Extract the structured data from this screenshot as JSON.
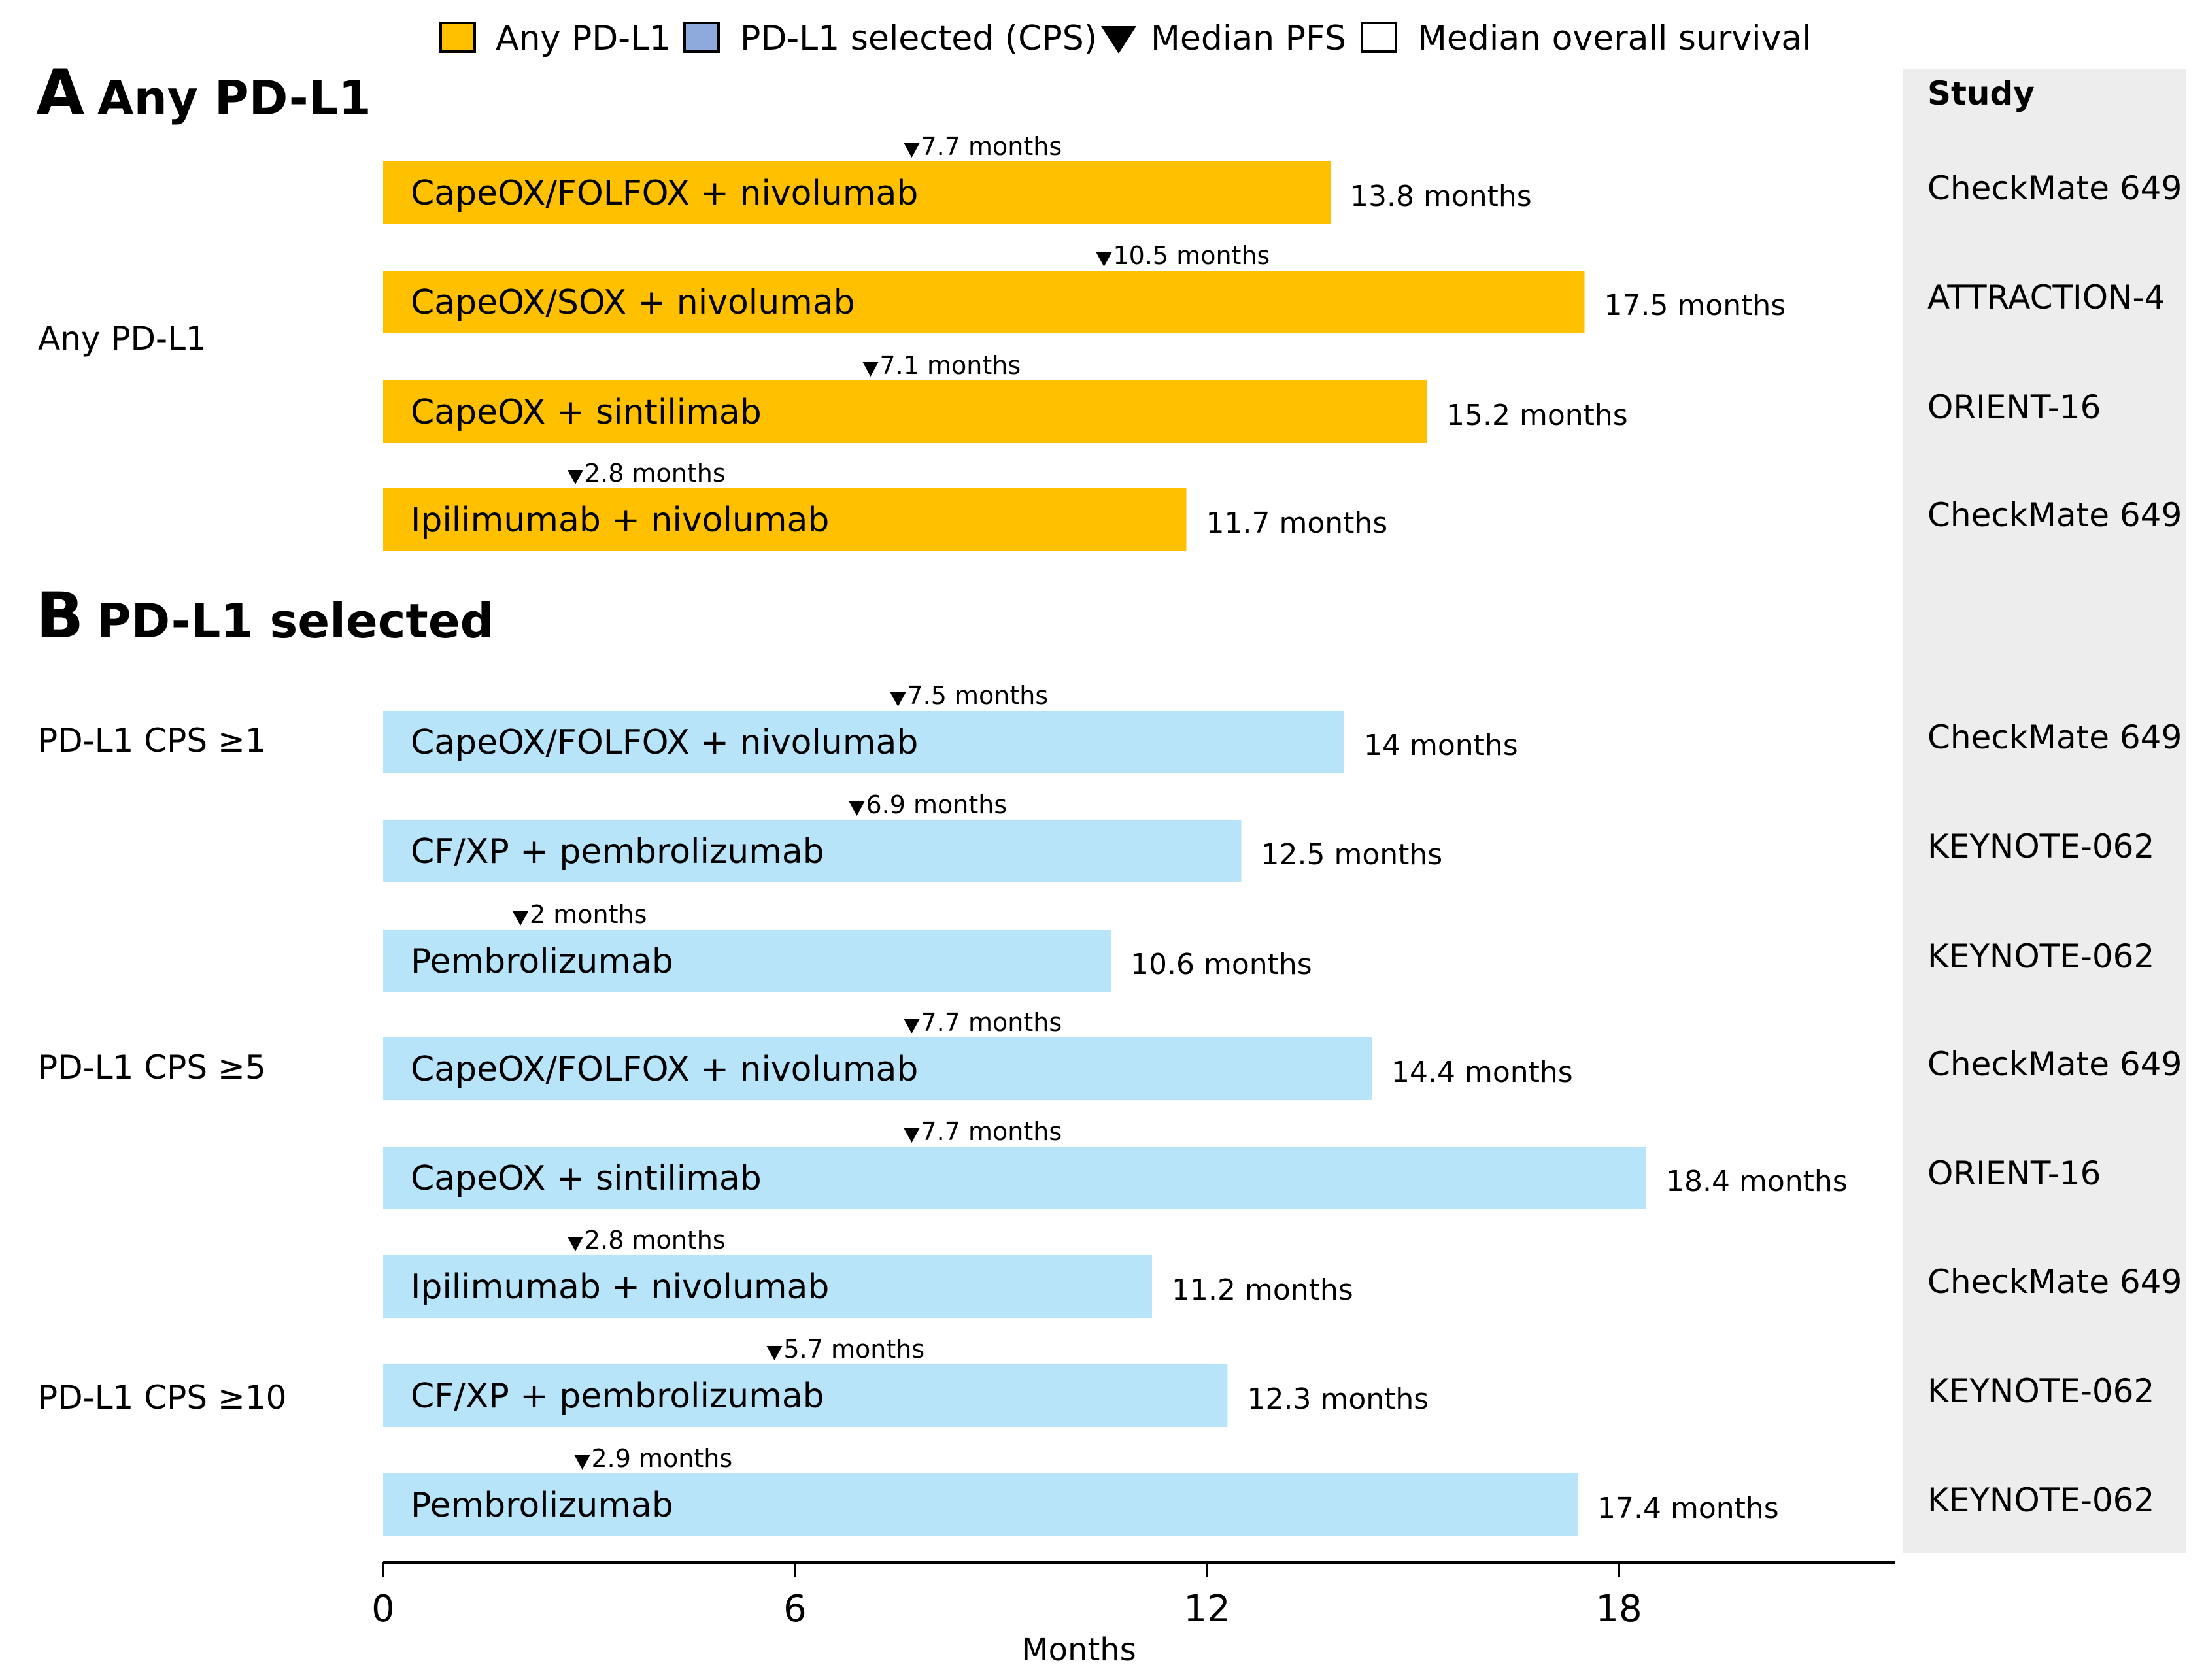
{
  "legend": {
    "any_label": "Any PD-L1",
    "selected_label": "PD-L1 selected (CPS)",
    "pfs_label": "Median PFS",
    "os_label": "Median overall survival",
    "any_color": "#FFC000",
    "selected_color": "#8EA9DB",
    "selected_bar_color": "#B8E4FA"
  },
  "panels": {
    "a_letter": "A",
    "a_title": "Any PD-L1",
    "b_letter": "B",
    "b_title": "PD-L1 selected"
  },
  "study_header": "Study",
  "chart_data": {
    "type": "bar",
    "orientation": "horizontal",
    "xlabel": "Months",
    "xlim": [
      0,
      22
    ],
    "xticks": [
      0,
      6,
      12,
      18
    ],
    "groups": [
      "Any PD-L1",
      "PD-L1 CPS ≥1",
      "PD-L1 CPS ≥5",
      "PD-L1 CPS ≥10"
    ],
    "series": [
      {
        "name": "Median overall survival",
        "key": "os"
      },
      {
        "name": "Median PFS",
        "key": "pfs"
      }
    ],
    "rows": [
      {
        "panel": "A",
        "group": "Any PD-L1",
        "regimen": "CapeOX/FOLFOX + nivolumab",
        "os": 13.8,
        "os_label": "13.8 months",
        "pfs": 7.7,
        "pfs_label": "7.7 months",
        "study": "CheckMate 649"
      },
      {
        "panel": "A",
        "group": "Any PD-L1",
        "regimen": "CapeOX/SOX + nivolumab",
        "os": 17.5,
        "os_label": "17.5 months",
        "pfs": 10.5,
        "pfs_label": "10.5 months",
        "study": "ATTRACTION-4"
      },
      {
        "panel": "A",
        "group": "Any PD-L1",
        "regimen": "CapeOX + sintilimab",
        "os": 15.2,
        "os_label": "15.2 months",
        "pfs": 7.1,
        "pfs_label": "7.1 months",
        "study": "ORIENT-16"
      },
      {
        "panel": "A",
        "group": "Any PD-L1",
        "regimen": "Ipilimumab + nivolumab",
        "os": 11.7,
        "os_label": "11.7 months",
        "pfs": 2.8,
        "pfs_label": "2.8 months",
        "study": "CheckMate 649"
      },
      {
        "panel": "B",
        "group": "PD-L1 CPS ≥1",
        "regimen": "CapeOX/FOLFOX + nivolumab",
        "os": 14.0,
        "os_label": "14 months",
        "pfs": 7.5,
        "pfs_label": "7.5 months",
        "study": "CheckMate 649"
      },
      {
        "panel": "B",
        "group": "PD-L1 CPS ≥1",
        "regimen": "CF/XP + pembrolizumab",
        "os": 12.5,
        "os_label": "12.5 months",
        "pfs": 6.9,
        "pfs_label": "6.9 months",
        "study": "KEYNOTE-062"
      },
      {
        "panel": "B",
        "group": "PD-L1 CPS ≥1",
        "regimen": "Pembrolizumab",
        "os": 10.6,
        "os_label": "10.6 months",
        "pfs": 2.0,
        "pfs_label": "2 months",
        "study": "KEYNOTE-062"
      },
      {
        "panel": "B",
        "group": "PD-L1 CPS ≥5",
        "regimen": "CapeOX/FOLFOX + nivolumab",
        "os": 14.4,
        "os_label": "14.4 months",
        "pfs": 7.7,
        "pfs_label": "7.7 months",
        "study": "CheckMate 649"
      },
      {
        "panel": "B",
        "group": "PD-L1 CPS ≥5",
        "regimen": "CapeOX + sintilimab",
        "os": 18.4,
        "os_label": "18.4 months",
        "pfs": 7.7,
        "pfs_label": "7.7 months",
        "study": "ORIENT-16"
      },
      {
        "panel": "B",
        "group": "PD-L1 CPS ≥5",
        "regimen": "Ipilimumab + nivolumab",
        "os": 11.2,
        "os_label": "11.2 months",
        "pfs": 2.8,
        "pfs_label": "2.8 months",
        "study": "CheckMate 649"
      },
      {
        "panel": "B",
        "group": "PD-L1 CPS ≥10",
        "regimen": "CF/XP + pembrolizumab",
        "os": 12.3,
        "os_label": "12.3 months",
        "pfs": 5.7,
        "pfs_label": "5.7 months",
        "study": "KEYNOTE-062"
      },
      {
        "panel": "B",
        "group": "PD-L1 CPS ≥10",
        "regimen": "Pembrolizumab",
        "os": 17.4,
        "os_label": "17.4 months",
        "pfs": 2.9,
        "pfs_label": "2.9 months",
        "study": "KEYNOTE-062"
      }
    ]
  }
}
